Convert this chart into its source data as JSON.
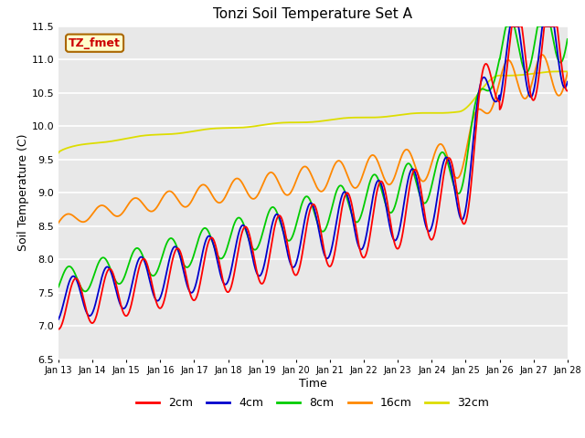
{
  "title": "Tonzi Soil Temperature Set A",
  "xlabel": "Time",
  "ylabel": "Soil Temperature (C)",
  "ylim": [
    6.5,
    11.5
  ],
  "annotation": "TZ_fmet",
  "colors": {
    "2cm": "#ff0000",
    "4cm": "#0000cc",
    "8cm": "#00cc00",
    "16cm": "#ff8800",
    "32cm": "#dddd00"
  },
  "legend_labels": [
    "2cm",
    "4cm",
    "8cm",
    "16cm",
    "32cm"
  ],
  "bg_color": "#e8e8e8",
  "x_tick_labels": [
    "Jan 13",
    "Jan 14",
    "Jan 15",
    "Jan 16",
    "Jan 17",
    "Jan 18",
    "Jan 19",
    "Jan 20",
    "Jan 21",
    "Jan 22",
    "Jan 23",
    "Jan 24",
    "Jan 25",
    "Jan 26",
    "Jan 27",
    "Jan 28"
  ]
}
